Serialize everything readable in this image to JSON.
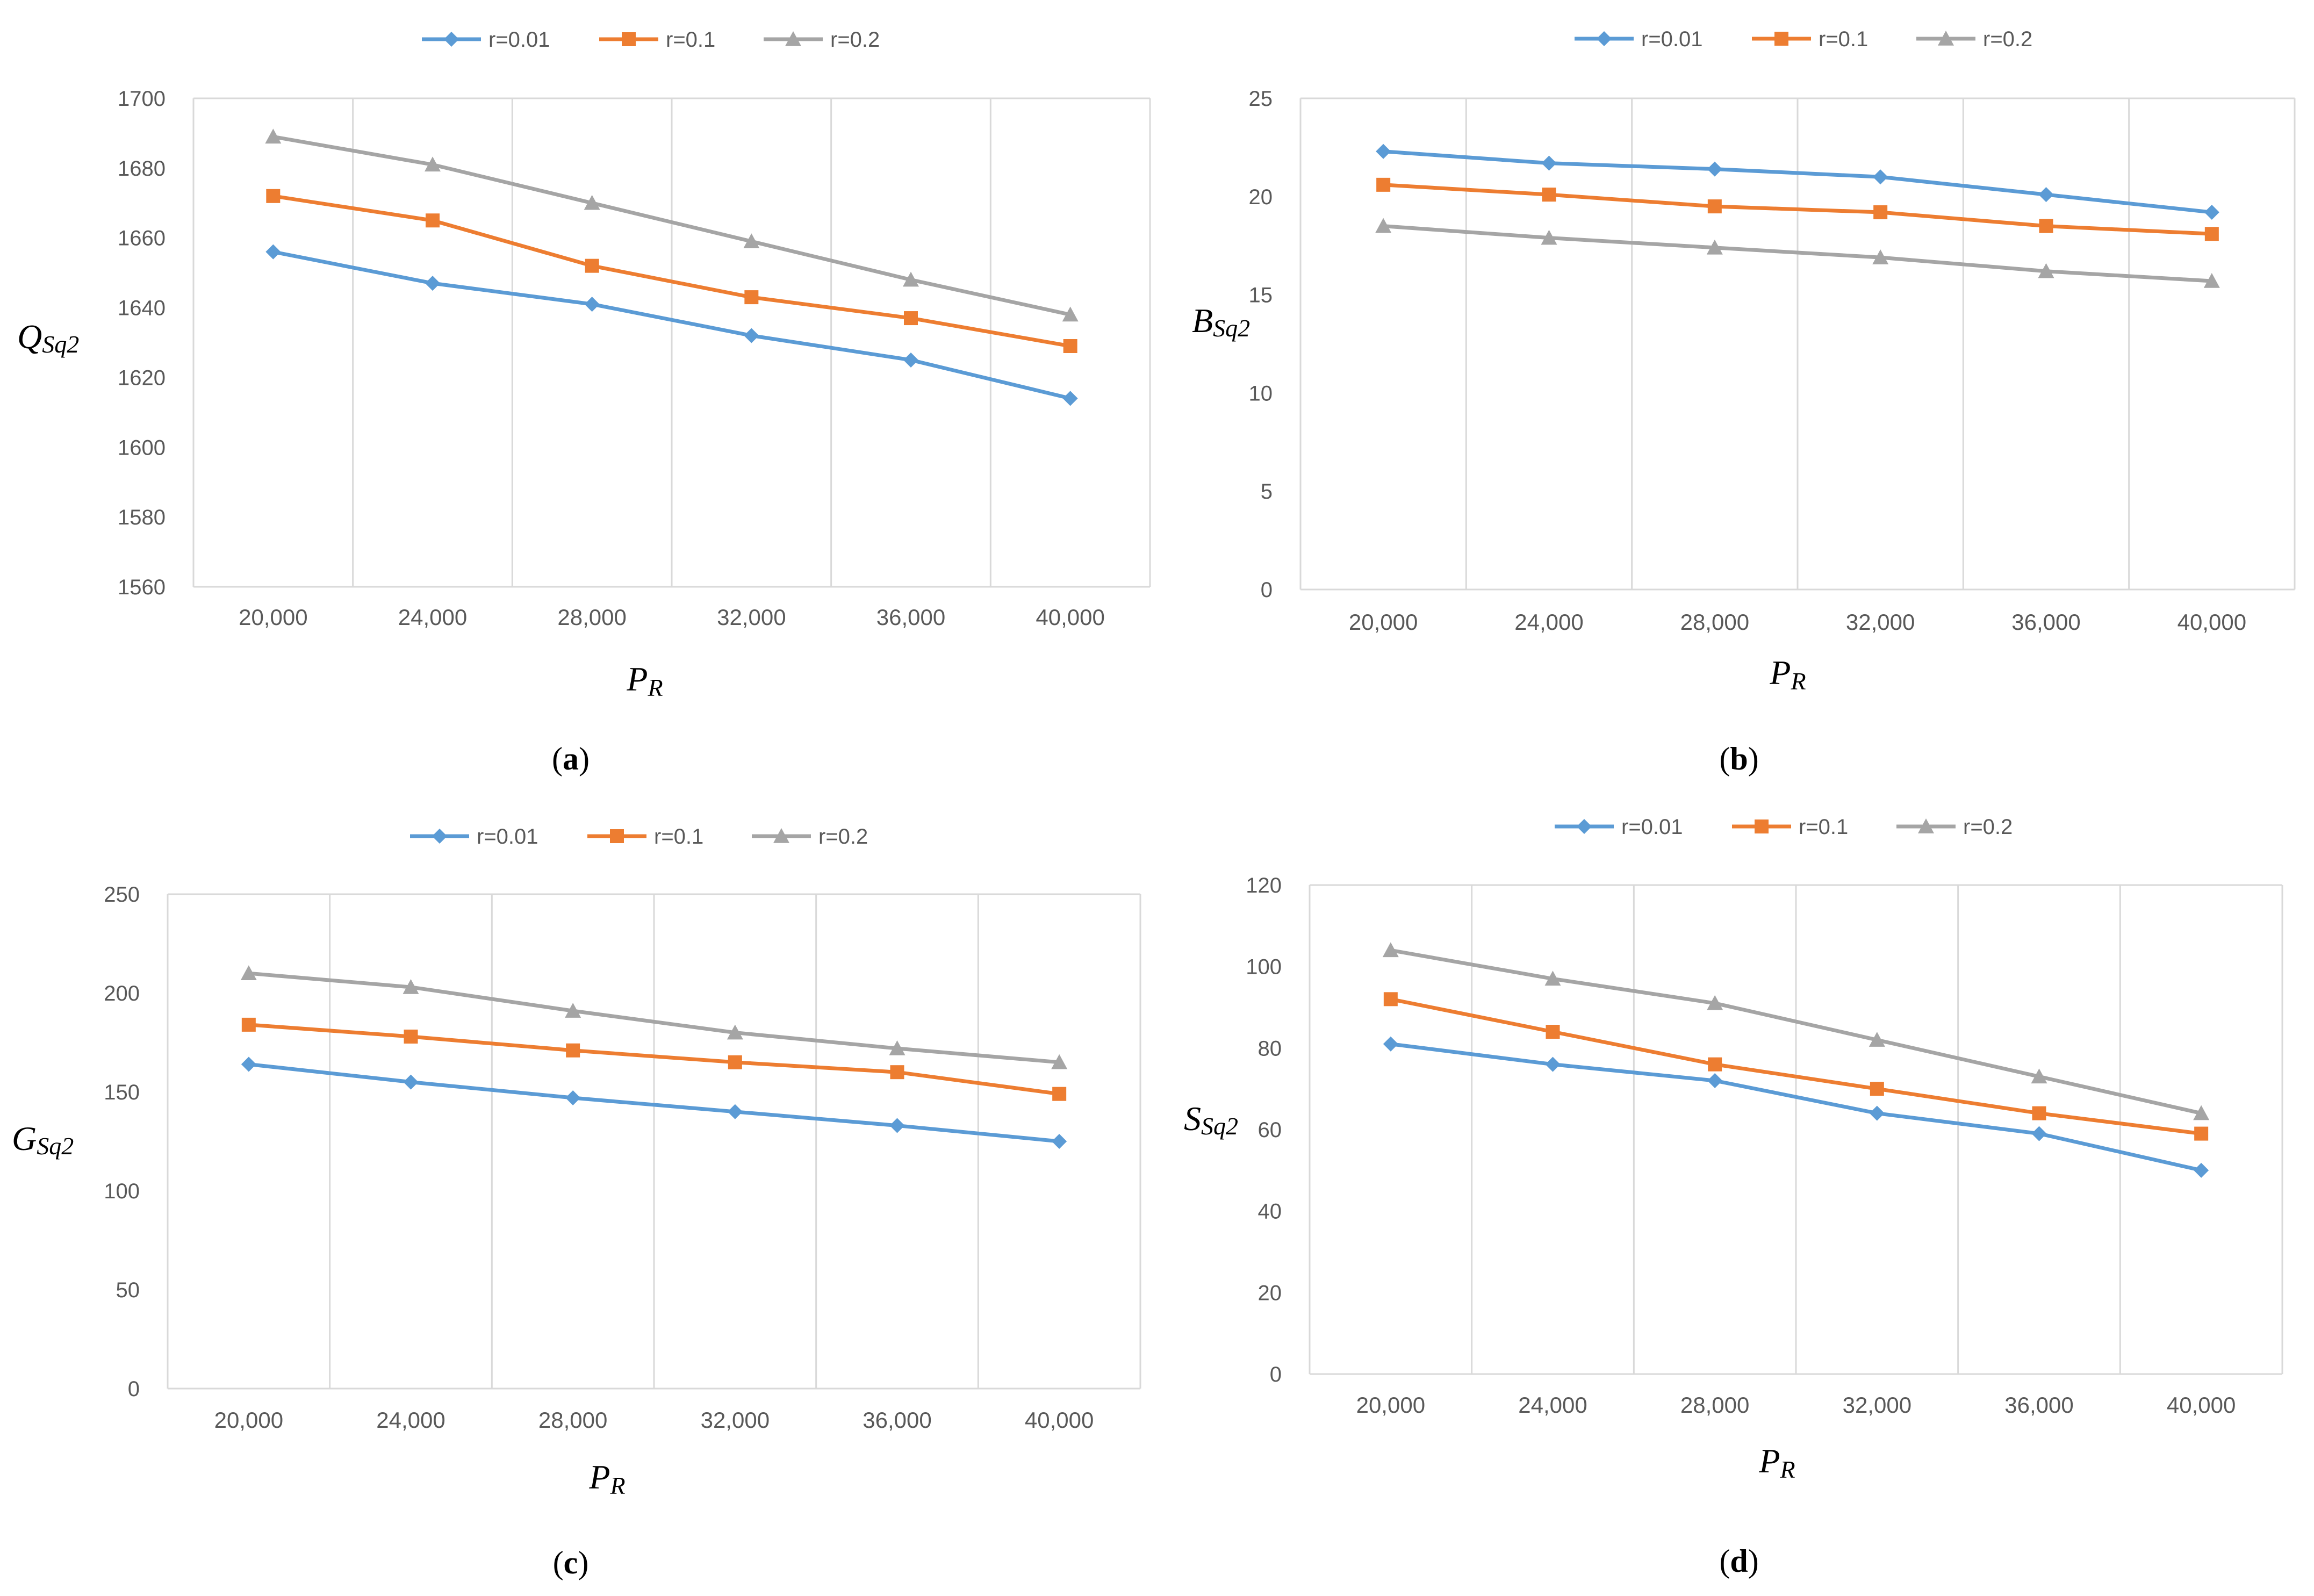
{
  "figure": {
    "background": "#ffffff",
    "grid_color": "#d9d9d9",
    "tick_color": "#595959"
  },
  "series_styles": [
    {
      "name": "r=0.01",
      "color": "#5b9bd5",
      "marker": "diamond"
    },
    {
      "name": "r=0.1",
      "color": "#ed7d31",
      "marker": "square"
    },
    {
      "name": "r=0.2",
      "color": "#a5a5a5",
      "marker": "triangle"
    }
  ],
  "chart_data": [
    {
      "panel": "a",
      "panel_label": {
        "open": "(",
        "letter": "a",
        "close": ")"
      },
      "type": "line",
      "title": "",
      "ylabel": {
        "main": "Q",
        "sub": "Sq2"
      },
      "xlabel": {
        "main": "P",
        "sub": "R"
      },
      "categories": [
        "20,000",
        "24,000",
        "28,000",
        "32,000",
        "36,000",
        "40,000"
      ],
      "ylim": [
        1560,
        1700
      ],
      "yticks": [
        1560,
        1580,
        1600,
        1620,
        1640,
        1660,
        1680,
        1700
      ],
      "ytick_labels": [
        "1560",
        "1580",
        "1600",
        "1620",
        "1640",
        "1660",
        "1680",
        "1700"
      ],
      "legend_position": "top",
      "series": [
        {
          "name": "r=0.01",
          "values": [
            1656,
            1647,
            1641,
            1632,
            1625,
            1614
          ]
        },
        {
          "name": "r=0.1",
          "values": [
            1672,
            1665,
            1652,
            1643,
            1637,
            1629
          ]
        },
        {
          "name": "r=0.2",
          "values": [
            1689,
            1681,
            1670,
            1659,
            1648,
            1638
          ]
        }
      ]
    },
    {
      "panel": "b",
      "panel_label": {
        "open": "(",
        "letter": "b",
        "close": ")"
      },
      "type": "line",
      "title": "",
      "ylabel": {
        "main": "B",
        "sub": "Sq2"
      },
      "xlabel": {
        "main": "P",
        "sub": "R"
      },
      "categories": [
        "20,000",
        "24,000",
        "28,000",
        "32,000",
        "36,000",
        "40,000"
      ],
      "ylim": [
        0,
        25
      ],
      "yticks": [
        0,
        5,
        10,
        15,
        20,
        25
      ],
      "ytick_labels": [
        "0",
        "5",
        "10",
        "15",
        "20",
        "25"
      ],
      "legend_position": "top",
      "series": [
        {
          "name": "r=0.01",
          "values": [
            22.3,
            21.7,
            21.4,
            21.0,
            20.1,
            19.2
          ]
        },
        {
          "name": "r=0.1",
          "values": [
            20.6,
            20.1,
            19.5,
            19.2,
            18.5,
            18.1
          ]
        },
        {
          "name": "r=0.2",
          "values": [
            18.5,
            17.9,
            17.4,
            16.9,
            16.2,
            15.7
          ]
        }
      ]
    },
    {
      "panel": "c",
      "panel_label": {
        "open": "(",
        "letter": "c",
        "close": ")"
      },
      "type": "line",
      "title": "",
      "ylabel": {
        "main": "G",
        "sub": "Sq2"
      },
      "xlabel": {
        "main": "P",
        "sub": "R"
      },
      "categories": [
        "20,000",
        "24,000",
        "28,000",
        "32,000",
        "36,000",
        "40,000"
      ],
      "ylim": [
        0,
        250
      ],
      "yticks": [
        0,
        50,
        100,
        150,
        200,
        250
      ],
      "ytick_labels": [
        "0",
        "50",
        "100",
        "150",
        "200",
        "250"
      ],
      "legend_position": "top",
      "series": [
        {
          "name": "r=0.01",
          "values": [
            164,
            155,
            147,
            140,
            133,
            125
          ]
        },
        {
          "name": "r=0.1",
          "values": [
            184,
            178,
            171,
            165,
            160,
            149
          ]
        },
        {
          "name": "r=0.2",
          "values": [
            210,
            203,
            191,
            180,
            172,
            165
          ]
        }
      ]
    },
    {
      "panel": "d",
      "panel_label": {
        "open": "(",
        "letter": "d",
        "close": ")"
      },
      "type": "line",
      "title": "",
      "ylabel": {
        "main": "S",
        "sub": "Sq2"
      },
      "xlabel": {
        "main": "P",
        "sub": "R"
      },
      "categories": [
        "20,000",
        "24,000",
        "28,000",
        "32,000",
        "36,000",
        "40,000"
      ],
      "ylim": [
        0,
        120
      ],
      "yticks": [
        0,
        20,
        40,
        60,
        80,
        100,
        120
      ],
      "ytick_labels": [
        "0",
        "20",
        "40",
        "60",
        "80",
        "100",
        "120"
      ],
      "legend_position": "top",
      "series": [
        {
          "name": "r=0.01",
          "values": [
            81,
            76,
            72,
            64,
            59,
            50
          ]
        },
        {
          "name": "r=0.1",
          "values": [
            92,
            84,
            76,
            70,
            64,
            59
          ]
        },
        {
          "name": "r=0.2",
          "values": [
            104,
            97,
            91,
            82,
            73,
            64
          ]
        }
      ]
    }
  ]
}
